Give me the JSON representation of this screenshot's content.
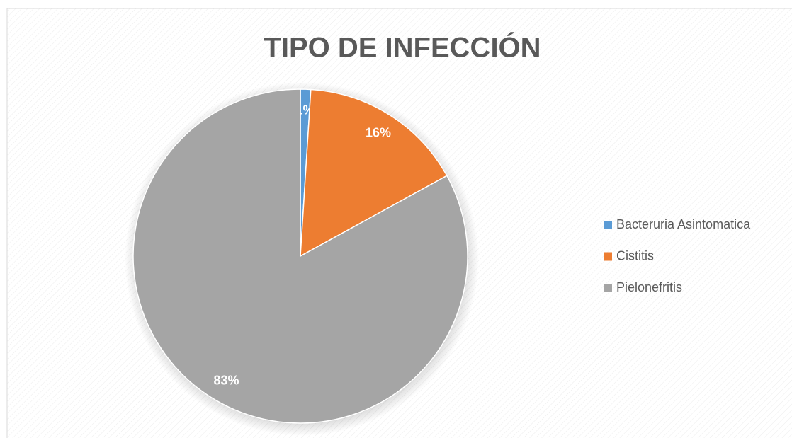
{
  "chart_data": {
    "type": "pie",
    "title": "TIPO DE INFECCIÓN",
    "categories": [
      "Bacteruria Asintomatica",
      "Cistitis",
      "Pielonefritis"
    ],
    "values": [
      1,
      16,
      83
    ],
    "value_labels": [
      "1%",
      "16%",
      "83%"
    ],
    "colors": [
      "#5b9bd5",
      "#ed7d31",
      "#a5a5a5"
    ],
    "legend": "right"
  }
}
